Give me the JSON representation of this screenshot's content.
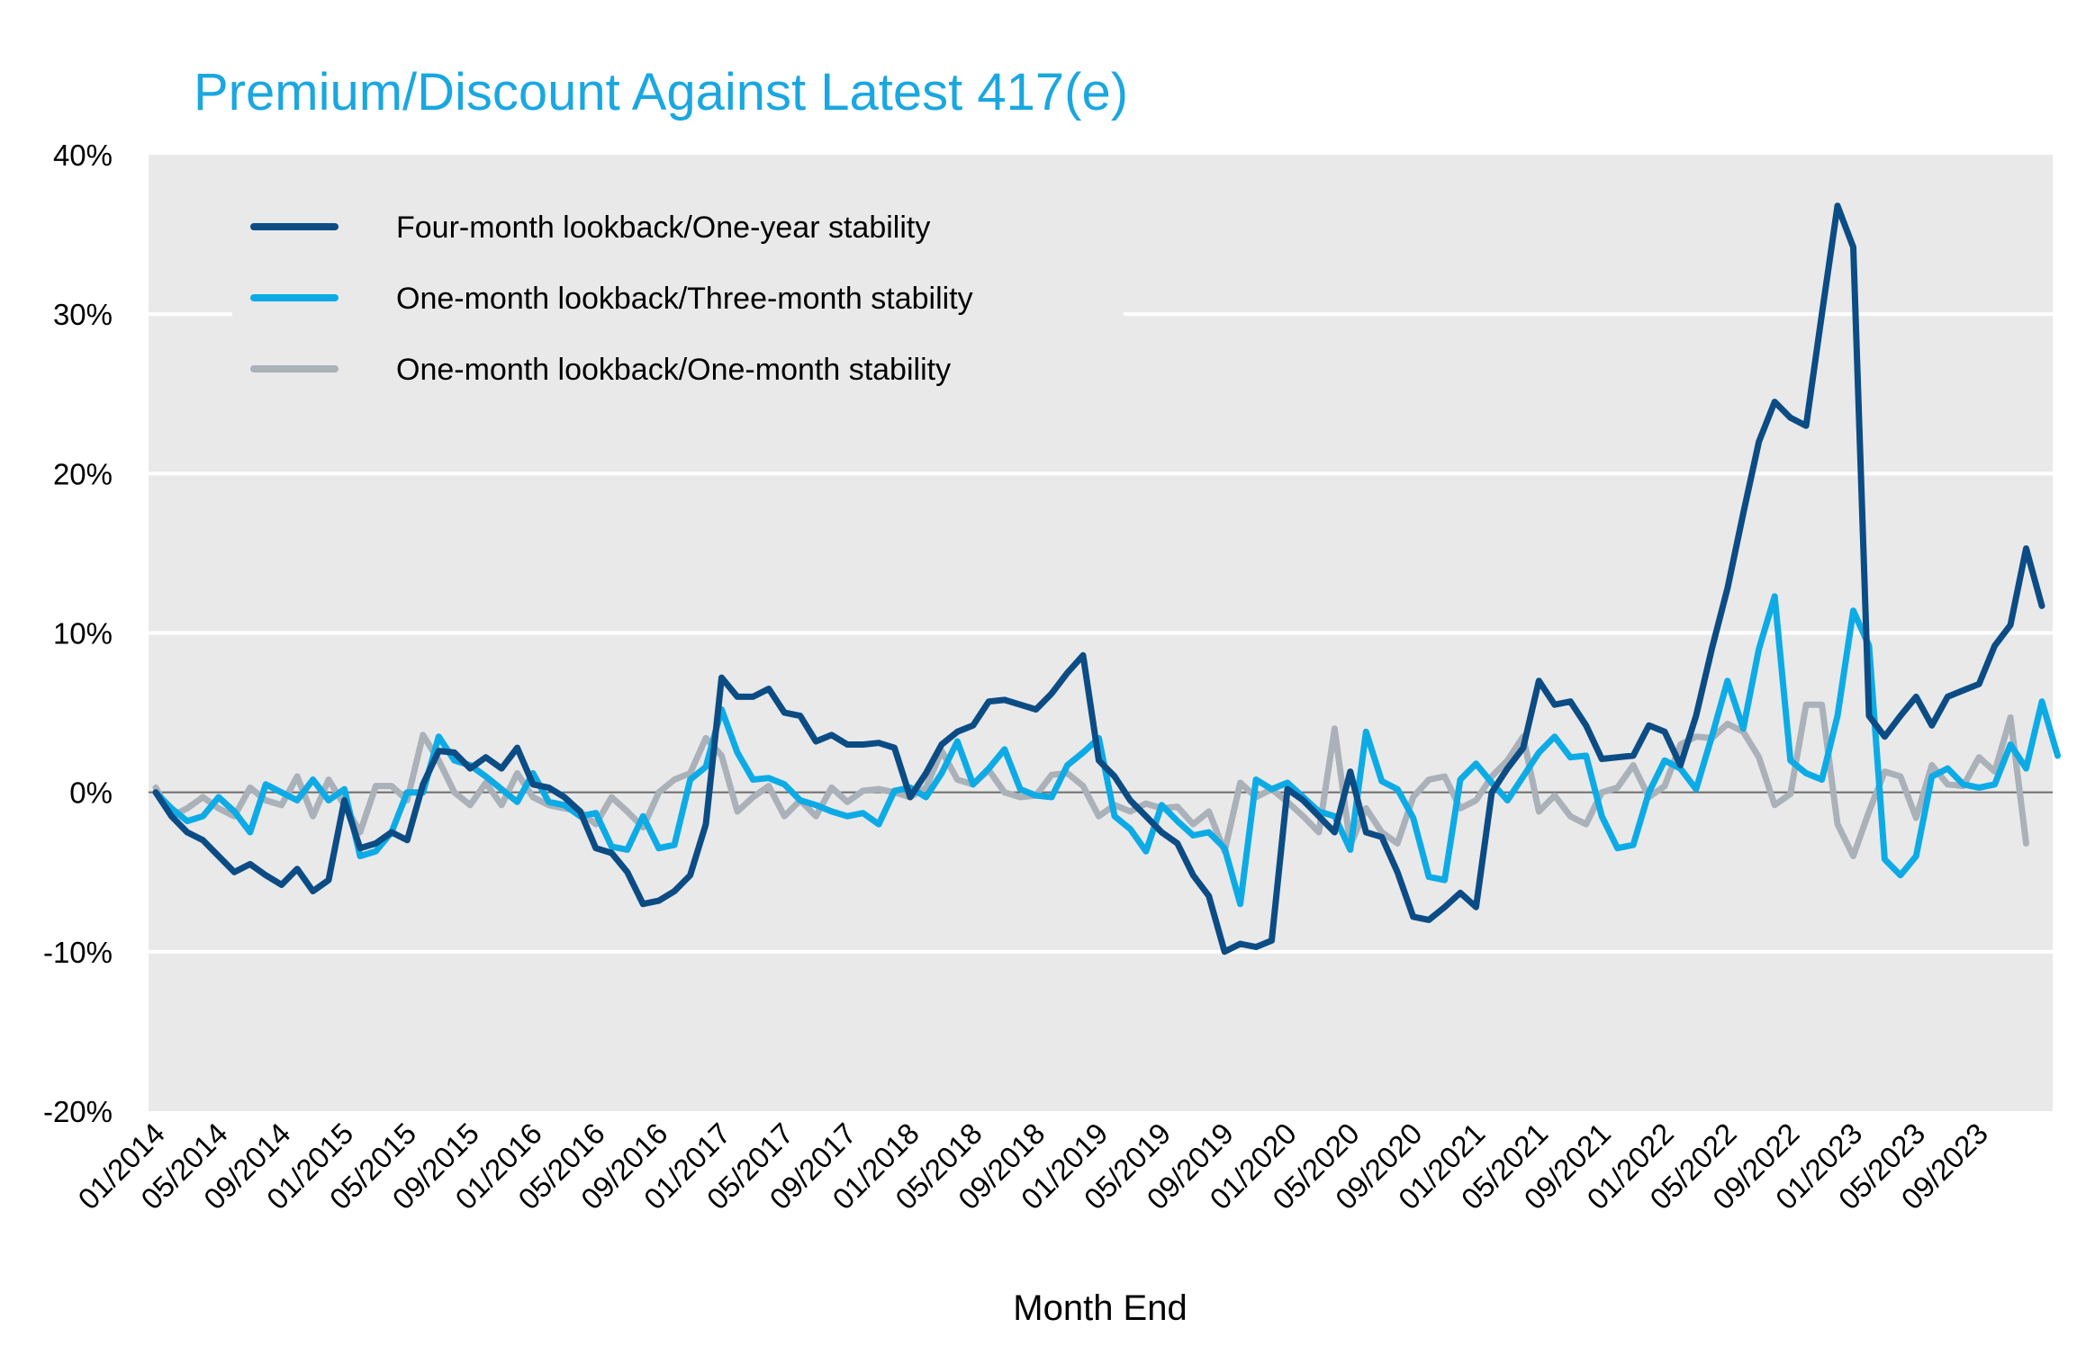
{
  "chart_data": {
    "type": "line",
    "title": "Premium/Discount Against Latest 417(e)",
    "xlabel": "Month End",
    "ylabel": "",
    "ylim": [
      -20,
      40
    ],
    "yticks": [
      -20,
      -10,
      0,
      10,
      20,
      30,
      40
    ],
    "ytick_labels": [
      "-20%",
      "-10%",
      "0%",
      "10%",
      "20%",
      "30%",
      "40%"
    ],
    "x_start": "01/2014",
    "x_end": "12/2023",
    "xtick_labels": [
      "01/2014",
      "05/2014",
      "09/2014",
      "01/2015",
      "05/2015",
      "09/2015",
      "01/2016",
      "05/2016",
      "09/2016",
      "01/2017",
      "05/2017",
      "09/2017",
      "01/2018",
      "05/2018",
      "09/2018",
      "01/2019",
      "05/2019",
      "09/2019",
      "01/2020",
      "05/2020",
      "09/2020",
      "01/2021",
      "05/2021",
      "09/2021",
      "01/2022",
      "05/2022",
      "09/2022",
      "01/2023",
      "05/2023",
      "09/2023"
    ],
    "grid": true,
    "legend_position": "top-left",
    "colors": {
      "plot_background": "#e9e9ea",
      "gridline": "#ffffff",
      "zero_line": "#6b6b6b",
      "title": "#1aa7e0"
    },
    "series": [
      {
        "name": "Four-month lookback/One-year stability",
        "color": "#0c4c84",
        "values": [
          0,
          -1.5,
          -2.5,
          -3,
          -4,
          -5,
          -4.5,
          -5.2,
          -5.8,
          -4.8,
          -6.2,
          -5.5,
          -0.5,
          -3.5,
          -3.2,
          -2.5,
          -3,
          0.5,
          2.6,
          2.5,
          1.5,
          2.2,
          1.5,
          2.8,
          0.5,
          0.3,
          -0.3,
          -1.2,
          -3.5,
          -3.8,
          -5,
          -7,
          -6.8,
          -6.2,
          -5.2,
          -2,
          7.2,
          6,
          6,
          6.5,
          5,
          4.8,
          3.2,
          3.6,
          3,
          3,
          3.1,
          2.8,
          -0.3,
          1.2,
          3,
          3.8,
          4.2,
          5.7,
          5.8,
          5.5,
          5.2,
          6.2,
          7.5,
          8.6,
          2,
          1,
          -0.5,
          -1.5,
          -2.5,
          -3.2,
          -5.2,
          -6.5,
          -10,
          -9.5,
          -9.7,
          -9.3,
          0.2,
          -0.5,
          -1.5,
          -2.5,
          1.3,
          -2.5,
          -2.8,
          -5,
          -7.8,
          -8,
          -7.2,
          -6.3,
          -7.2,
          0,
          1.5,
          2.8,
          7,
          5.5,
          5.7,
          4.2,
          2.1,
          2.2,
          2.3,
          4.2,
          3.8,
          1.7,
          4.8,
          9,
          12.8,
          17.5,
          22,
          24.5,
          23.5,
          23,
          30,
          36.8,
          34.2,
          4.8,
          3.5,
          4.8,
          6,
          4.2,
          6,
          6.4,
          6.8,
          9.2,
          10.5,
          15.3,
          11.7
        ]
      },
      {
        "name": "One-month lookback/Three-month stability",
        "color": "#0dabe6",
        "values": [
          0,
          -1,
          -1.8,
          -1.5,
          -0.3,
          -1.2,
          -2.5,
          0.5,
          0,
          -0.5,
          0.8,
          -0.5,
          0.2,
          -4,
          -3.7,
          -2.5,
          0,
          0,
          3.5,
          2,
          1.7,
          1,
          0.2,
          -0.6,
          1.2,
          -0.6,
          -0.8,
          -1.5,
          -1.3,
          -3.4,
          -3.6,
          -1.5,
          -3.5,
          -3.3,
          0.8,
          1.6,
          5.2,
          2.5,
          0.8,
          0.9,
          0.5,
          -0.5,
          -0.8,
          -1.2,
          -1.5,
          -1.3,
          -2,
          0.1,
          0.3,
          -0.3,
          1.2,
          3.2,
          0.5,
          1.5,
          2.7,
          0.2,
          -0.2,
          -0.3,
          1.7,
          2.5,
          3.4,
          -1.5,
          -2.3,
          -3.7,
          -0.8,
          -1.8,
          -2.7,
          -2.5,
          -3.5,
          -7,
          0.8,
          0.2,
          0.6,
          -0.3,
          -1.2,
          -1.5,
          -3.6,
          3.8,
          0.7,
          0.2,
          -1.6,
          -5.3,
          -5.5,
          0.8,
          1.8,
          0.6,
          -0.5,
          1,
          2.5,
          3.5,
          2.2,
          2.3,
          -1.5,
          -3.5,
          -3.3,
          0,
          2,
          1.5,
          0.2,
          3.5,
          7,
          4,
          9,
          12.3,
          2,
          1.2,
          0.8,
          4.8,
          11.4,
          9.2,
          -4.2,
          -5.2,
          -4,
          1,
          1.5,
          0.5,
          0.3,
          0.5,
          3,
          1.5,
          5.7,
          2.3
        ]
      },
      {
        "name": "One-month lookback/One-month stability",
        "color": "#aab1b8",
        "values": [
          0.3,
          -1.5,
          -1,
          -0.3,
          -1,
          -1.5,
          0.3,
          -0.5,
          -0.8,
          1,
          -1.5,
          0.8,
          -0.8,
          -2.5,
          0.4,
          0.4,
          -0.5,
          3.6,
          2,
          0,
          -0.8,
          0.6,
          -0.8,
          1.2,
          -0.3,
          -0.8,
          -1,
          -1.2,
          -2,
          -0.3,
          -1.2,
          -2.2,
          0,
          0.8,
          1.2,
          3.4,
          2.3,
          -1.2,
          -0.3,
          0.4,
          -1.5,
          -0.5,
          -1.5,
          0.3,
          -0.6,
          0.1,
          0.2,
          0,
          -0.3,
          0.3,
          2.6,
          0.8,
          0.5,
          1.4,
          0,
          -0.3,
          -0.2,
          1.1,
          1.2,
          0.4,
          -1.5,
          -0.8,
          -1.2,
          -0.7,
          -1,
          -0.9,
          -2,
          -1.2,
          -3.7,
          0.6,
          -0.3,
          0.2,
          -0.6,
          -1.5,
          -2.5,
          4,
          -3.3,
          -1,
          -2.5,
          -3.2,
          -0.3,
          0.8,
          1,
          -1,
          -0.5,
          1,
          2,
          3.5,
          -1.2,
          -0.2,
          -1.5,
          -2,
          0,
          0.3,
          1.7,
          -0.3,
          0.4,
          3,
          3.5,
          3.4,
          4.3,
          3.8,
          2.2,
          -0.8,
          -0.1,
          5.5,
          5.5,
          -2,
          -4,
          -1.2,
          1.3,
          1,
          -1.6,
          1.7,
          0.5,
          0.4,
          2.2,
          1.3,
          4.7,
          -3.2
        ]
      }
    ]
  }
}
